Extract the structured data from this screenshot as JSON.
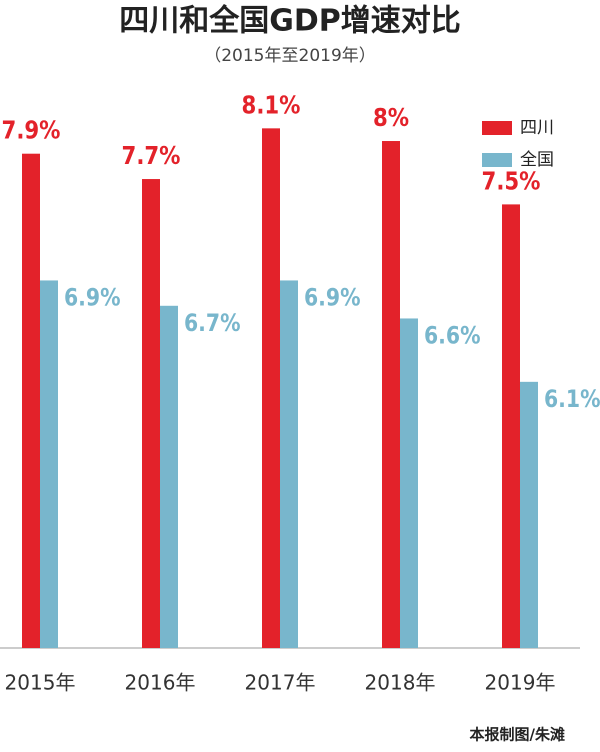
{
  "chart_data": {
    "type": "bar",
    "title": "四川和全国GDP增速对比",
    "subtitle": "（2015年至2019年）",
    "categories": [
      "2015年",
      "2016年",
      "2017年",
      "2018年",
      "2019年"
    ],
    "series": [
      {
        "name": "四川",
        "color": "#e3222a",
        "values": [
          7.9,
          7.7,
          8.1,
          8,
          7.5
        ],
        "value_labels": [
          "7.9%",
          "7.7%",
          "8.1%",
          "8%",
          "7.5%"
        ]
      },
      {
        "name": "全国",
        "color": "#78b6cc",
        "values": [
          6.9,
          6.7,
          6.9,
          6.6,
          6.1
        ],
        "value_labels": [
          "6.9%",
          "6.7%",
          "6.9%",
          "6.6%",
          "6.1%"
        ]
      }
    ],
    "ylim": [
      4,
      8.3
    ],
    "legend": "upper right",
    "credit": "本报制图/朱滩"
  }
}
